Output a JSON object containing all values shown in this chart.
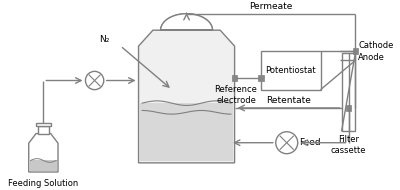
{
  "bg_color": "#ffffff",
  "line_color": "#808080",
  "text_color": "#000000",
  "title": "",
  "labels": {
    "feeding_solution": "Feeding Solution",
    "n2": "N₂",
    "permeate": "Permeate",
    "cathode": "Cathode",
    "anode": "Anode",
    "potentiostat": "Potentiostat",
    "reference_electrode": "Reference\nelectrode",
    "retentate": "Retentate",
    "feed": "Feed",
    "filter_cassette": "Filter\ncassette"
  }
}
